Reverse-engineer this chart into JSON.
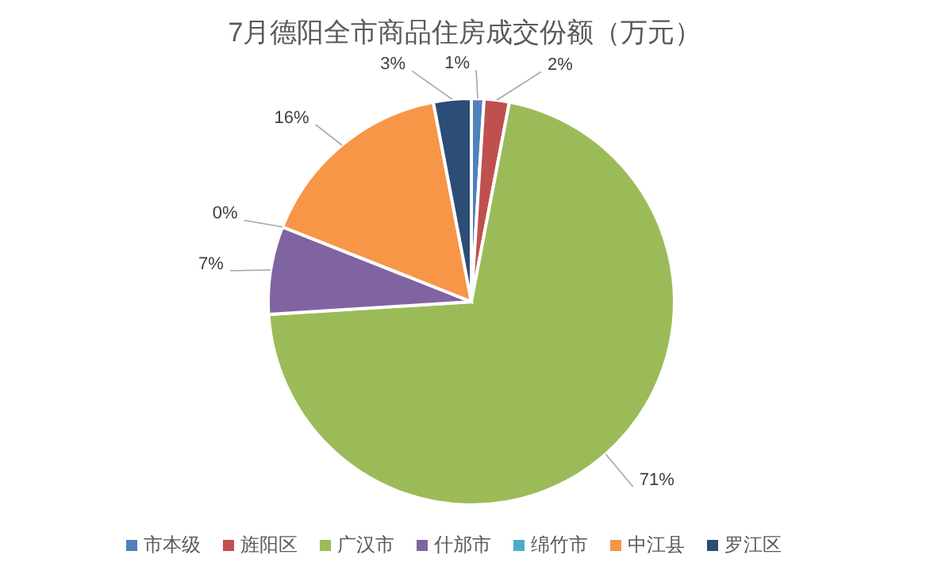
{
  "chart_data": {
    "type": "pie",
    "title": "7月德阳全市商品住房成交份额（万元）",
    "categories": [
      "市本级",
      "旌阳区",
      "广汉市",
      "什邡市",
      "绵竹市",
      "中江县",
      "罗江区"
    ],
    "values": [
      1,
      2,
      71,
      7,
      0,
      16,
      3
    ],
    "value_labels": [
      "1%",
      "2%",
      "71%",
      "7%",
      "0%",
      "16%",
      "3%"
    ],
    "colors": [
      "#4f81bd",
      "#c0504d",
      "#9bbb59",
      "#8064a2",
      "#4bacc6",
      "#f79646",
      "#2c4d75"
    ],
    "legend": "bottom"
  }
}
